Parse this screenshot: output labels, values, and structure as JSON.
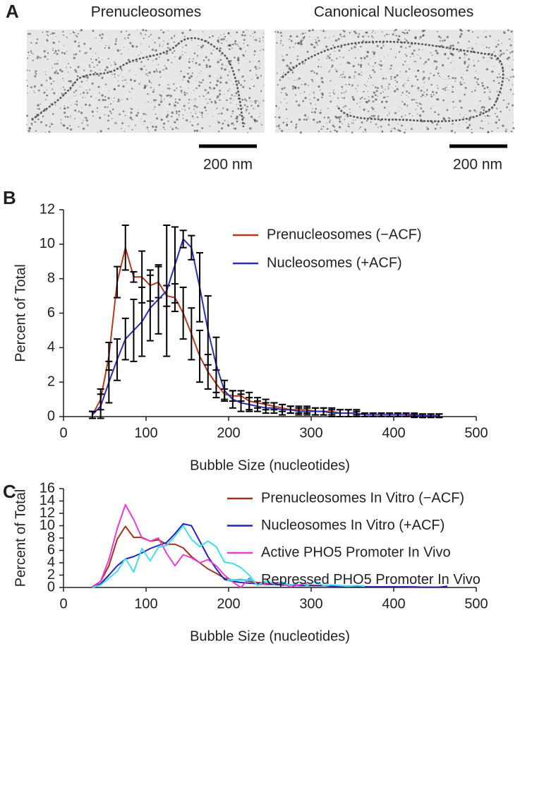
{
  "panels": {
    "a": {
      "letter": "A",
      "left_title": "Prenucleosomes",
      "right_title": "Canonical Nucleosomes",
      "left_scale": "200 nm",
      "right_scale": "200 nm"
    },
    "b": {
      "letter": "B"
    },
    "c": {
      "letter": "C"
    }
  },
  "chart_data": [
    {
      "type": "line",
      "xlabel": "Bubble Size (nucleotides)",
      "ylabel": "Percent of Total",
      "x": [
        35,
        45,
        55,
        65,
        75,
        85,
        95,
        105,
        115,
        125,
        135,
        145,
        155,
        165,
        175,
        185,
        195,
        205,
        215,
        225,
        235,
        245,
        255,
        265,
        275,
        285,
        295,
        305,
        315,
        325,
        335,
        345,
        355,
        365,
        375,
        385,
        395,
        405,
        415,
        425,
        435,
        445,
        455
      ],
      "xlim": [
        0,
        500
      ],
      "xticks": [
        0,
        100,
        200,
        300,
        400,
        500
      ],
      "ylim": [
        0,
        12
      ],
      "yticks": [
        0,
        2,
        4,
        6,
        8,
        10,
        12
      ],
      "legend": "top-right",
      "error_color": "#000000",
      "series": [
        {
          "name": "Prenucleosomes (−ACF)",
          "color": "#b5391e",
          "values": [
            0.1,
            1.0,
            3.5,
            7.8,
            9.8,
            8.1,
            8.1,
            7.6,
            7.8,
            7.0,
            6.9,
            6.0,
            4.8,
            3.5,
            2.6,
            1.9,
            1.3,
            1.2,
            1.2,
            0.9,
            0.8,
            0.7,
            0.6,
            0.5,
            0.4,
            0.4,
            0.4,
            0.3,
            0.3,
            0.3,
            0.2,
            0.2,
            0.2,
            0.1,
            0.1,
            0.1,
            0.1,
            0.1,
            0.1,
            0.05,
            0.05,
            0.05,
            0.05
          ],
          "errors": [
            0.2,
            0.6,
            0.8,
            0.9,
            1.3,
            0.3,
            1.5,
            0.9,
            0.9,
            0.6,
            0.8,
            1.5,
            1.5,
            1.5,
            1.0,
            0.8,
            0.3,
            0.3,
            0.3,
            0.5,
            0.3,
            0.3,
            0.2,
            0.2,
            0.2,
            0.2,
            0.2,
            0.2,
            0.2,
            0.2,
            0.2,
            0.2,
            0.1,
            0.1,
            0.1,
            0.1,
            0.1,
            0.1,
            0.1,
            0.1,
            0.1,
            0.1,
            0.1
          ]
        },
        {
          "name": "Nucleosomes (+ACF)",
          "color": "#2b2fb5",
          "values": [
            0.1,
            0.6,
            2.0,
            3.3,
            4.5,
            5.0,
            5.5,
            6.3,
            6.8,
            7.3,
            8.8,
            10.3,
            9.8,
            7.5,
            5.0,
            3.0,
            1.5,
            1.0,
            0.8,
            0.7,
            0.6,
            0.5,
            0.5,
            0.4,
            0.4,
            0.3,
            0.3,
            0.3,
            0.3,
            0.2,
            0.2,
            0.2,
            0.2,
            0.1,
            0.1,
            0.1,
            0.1,
            0.1,
            0.1,
            0.1,
            0.05,
            0.05,
            0.05
          ],
          "errors": [
            0.2,
            0.7,
            1.2,
            1.2,
            1.2,
            1.8,
            2.0,
            1.9,
            2.0,
            3.8,
            2.2,
            0.5,
            0.7,
            2.0,
            2.0,
            1.6,
            0.6,
            0.5,
            0.5,
            0.4,
            0.3,
            0.3,
            0.3,
            0.3,
            0.2,
            0.2,
            0.2,
            0.2,
            0.2,
            0.2,
            0.2,
            0.2,
            0.2,
            0.1,
            0.1,
            0.1,
            0.1,
            0.1,
            0.1,
            0.1,
            0.1,
            0.1,
            0.1
          ]
        }
      ]
    },
    {
      "type": "line",
      "xlabel": "Bubble Size (nucleotides)",
      "ylabel": "Percent of Total",
      "x": [
        35,
        45,
        55,
        65,
        75,
        85,
        95,
        105,
        115,
        125,
        135,
        145,
        155,
        165,
        175,
        185,
        195,
        205,
        215,
        225,
        235,
        245,
        255,
        265,
        275,
        285,
        295,
        305,
        315,
        325,
        335,
        345,
        355,
        365,
        375,
        385,
        395,
        405,
        415,
        425,
        435,
        445,
        455,
        465
      ],
      "xlim": [
        0,
        500
      ],
      "xticks": [
        0,
        100,
        200,
        300,
        400,
        500
      ],
      "ylim": [
        0,
        16
      ],
      "yticks": [
        0,
        2,
        4,
        6,
        8,
        10,
        12,
        14,
        16
      ],
      "legend": "top-right",
      "series": [
        {
          "name": "Prenucleosomes In Vitro (−ACF)",
          "color": "#a0331b",
          "values": [
            0.1,
            1.0,
            3.5,
            7.8,
            9.9,
            8.1,
            8.1,
            7.5,
            7.7,
            7.0,
            7.0,
            6.4,
            5.0,
            4.0,
            3.0,
            2.3,
            1.5,
            1.2,
            1.3,
            1.0,
            0.8,
            0.7,
            0.6,
            0.5,
            0.4,
            0.4,
            0.4,
            0.3,
            0.3,
            0.3,
            0.2,
            0.2,
            0.2,
            0.1,
            0.1,
            0.1,
            0.1,
            0.1,
            0.1,
            0.05,
            0.05,
            0.05,
            0.05,
            null
          ]
        },
        {
          "name": "Nucleosomes In Vitro (+ACF)",
          "color": "#2424b8",
          "values": [
            0.1,
            0.6,
            2.0,
            3.5,
            4.6,
            5.0,
            5.6,
            6.3,
            6.8,
            7.3,
            8.7,
            10.3,
            10.0,
            7.5,
            5.0,
            3.0,
            1.3,
            1.0,
            0.8,
            0.7,
            0.6,
            0.5,
            0.5,
            0.4,
            0.4,
            0.3,
            0.3,
            0.3,
            0.3,
            0.2,
            0.2,
            0.2,
            0.2,
            0.1,
            0.1,
            0.1,
            0.1,
            0.1,
            0.1,
            0.1,
            0.05,
            0.05,
            0.05,
            0.2
          ]
        },
        {
          "name": "Active PHO5 Promoter In Vivo",
          "color": "#ef3ad1",
          "values": [
            0.0,
            1.0,
            4.5,
            9.5,
            13.4,
            11.0,
            8.0,
            7.5,
            8.0,
            5.5,
            3.5,
            5.3,
            4.8,
            4.0,
            4.5,
            3.5,
            2.0,
            0.9,
            0.0,
            1.5,
            0.4,
            0.6,
            0.8,
            0.6,
            0.1,
            0.4,
            0.7,
            null,
            null,
            null,
            null,
            null,
            null,
            null,
            null,
            null,
            null,
            null,
            null,
            null,
            null,
            null,
            null,
            null
          ]
        },
        {
          "name": "Repressed PHO5 Promoter In Vivo",
          "color": "#3fdfe6",
          "values": [
            0.0,
            0.4,
            1.5,
            2.6,
            4.7,
            2.5,
            6.3,
            4.3,
            6.5,
            6.8,
            8.3,
            10.0,
            7.8,
            6.6,
            7.5,
            6.6,
            4.1,
            3.9,
            3.2,
            2.0,
            0.3,
            1.1,
            0.6,
            0.9,
            0.3,
            0.9,
            0.3,
            1.0,
            0.3,
            0.4,
            0.3,
            0.2,
            0.3,
            0.2,
            null,
            null,
            null,
            null,
            null,
            null,
            null,
            null,
            null,
            null
          ]
        }
      ]
    }
  ]
}
